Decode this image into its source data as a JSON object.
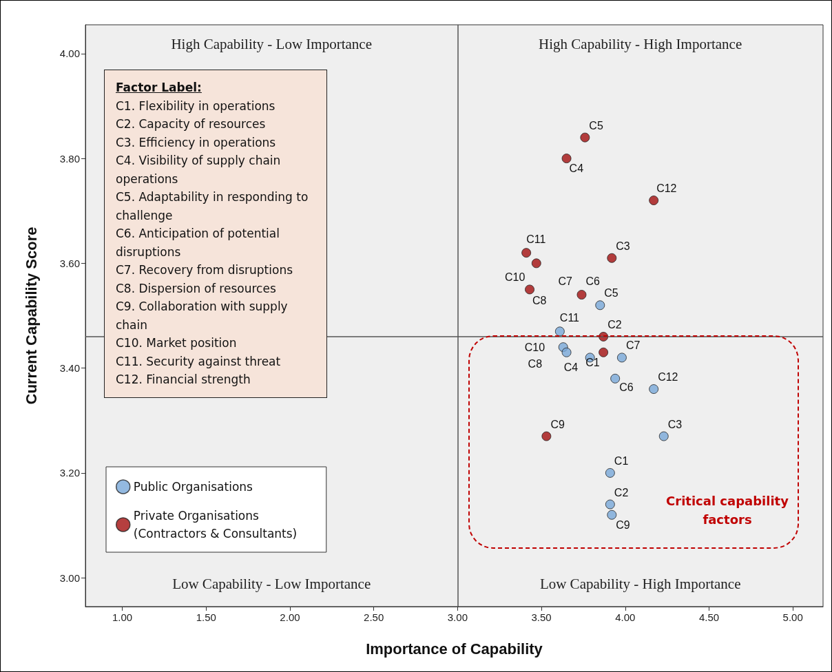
{
  "chart_data": {
    "type": "scatter",
    "xlabel": "Importance of Capability",
    "ylabel": "Current Capability Score",
    "xlim": [
      0.78,
      5.18
    ],
    "ylim": [
      2.945,
      4.055
    ],
    "xticks": [
      {
        "value": 1,
        "label": "1.00"
      },
      {
        "value": 1.5,
        "label": "1.50"
      },
      {
        "value": 2,
        "label": "2.00"
      },
      {
        "value": 2.5,
        "label": "2.50"
      },
      {
        "value": 3,
        "label": "3.00"
      },
      {
        "value": 3.5,
        "label": "3.50"
      },
      {
        "value": 4,
        "label": "4.00"
      },
      {
        "value": 4.5,
        "label": "4.50"
      },
      {
        "value": 5,
        "label": "5.00"
      }
    ],
    "yticks": [
      {
        "value": 3,
        "label": "3.00"
      },
      {
        "value": 3.2,
        "label": "3.20"
      },
      {
        "value": 3.4,
        "label": "3.40"
      },
      {
        "value": 3.6,
        "label": "3.60"
      },
      {
        "value": 3.8,
        "label": "3.80"
      },
      {
        "value": 4,
        "label": "4.00"
      }
    ],
    "grid": false,
    "legend": "bottom left",
    "marker": "circle",
    "series": [
      {
        "name": "Public Organisations",
        "color": "#78a8d8",
        "x": [
          3.85,
          3.61,
          3.63,
          3.65,
          3.79,
          3.98,
          3.94,
          4.17,
          4.23,
          3.91,
          3.91,
          3.92
        ],
        "values": [
          3.52,
          3.47,
          3.44,
          3.43,
          3.42,
          3.42,
          3.38,
          3.36,
          3.27,
          3.2,
          3.14,
          3.12
        ]
      },
      {
        "name": "Private Organisations (Contractors & Consultants)",
        "color": "#a30f0f",
        "x": [
          3.76,
          3.65,
          4.17,
          3.41,
          3.47,
          3.92,
          3.43,
          3.74,
          3.87,
          3.87,
          3.53
        ],
        "values": [
          3.84,
          3.8,
          3.72,
          3.62,
          3.6,
          3.61,
          3.55,
          3.54,
          3.46,
          3.43,
          3.27
        ]
      }
    ],
    "ref_lines": [
      {
        "axis": "x",
        "value": 3.0,
        "color": "#555555"
      },
      {
        "axis": "y",
        "value": 3.464,
        "color": "#555555"
      }
    ],
    "annotations": [
      "High Capability - Low Importance",
      "High Capability - High Importance",
      "Low Capability - Low Importance",
      "Low Capability - High Importance",
      "Factor Label:",
      "C1. Flexibility in operations",
      "C2. Capacity of resources",
      "C3. Efficiency in operations",
      "C4. Visibility of supply chain operations",
      "C5. Adaptability in responding to challenge",
      "C6. Anticipation of potential disruptions",
      "C7. Recovery from disruptions",
      "C8. Dispersion of resources",
      "C9. Collaboration with supply chain",
      "C10. Market position",
      "C11. Security against threat",
      "C12. Financial strength",
      "Critical capability factors",
      {
        "text": "C5",
        "x": 3.76,
        "y": 3.84
      },
      {
        "text": "C4",
        "x": 3.65,
        "y": 3.8
      },
      {
        "text": "C12",
        "x": 4.17,
        "y": 3.72
      },
      {
        "text": "C11",
        "x": 3.41,
        "y": 3.62
      },
      {
        "text": "C3",
        "x": 3.92,
        "y": 3.61
      },
      {
        "text": "C10",
        "x": 3.43,
        "y": 3.55
      },
      {
        "text": "C8",
        "x": 3.43,
        "y": 3.55
      },
      {
        "text": "C7",
        "x": 3.74,
        "y": 3.54
      },
      {
        "text": "C6",
        "x": 3.74,
        "y": 3.54
      },
      {
        "text": "C2",
        "x": 3.87,
        "y": 3.46
      },
      {
        "text": "C1",
        "x": 3.87,
        "y": 3.43
      },
      {
        "text": "C9",
        "x": 3.53,
        "y": 3.27
      },
      {
        "text": "C5",
        "x": 3.85,
        "y": 3.52
      },
      {
        "text": "C11",
        "x": 3.61,
        "y": 3.47
      },
      {
        "text": "C10",
        "x": 3.63,
        "y": 3.44
      },
      {
        "text": "C8",
        "x": 3.65,
        "y": 3.43
      },
      {
        "text": "C4",
        "x": 3.79,
        "y": 3.42
      },
      {
        "text": "C7",
        "x": 3.98,
        "y": 3.42
      },
      {
        "text": "C6",
        "x": 3.94,
        "y": 3.38
      },
      {
        "text": "C12",
        "x": 4.17,
        "y": 3.36
      },
      {
        "text": "C3",
        "x": 4.23,
        "y": 3.27
      },
      {
        "text": "C1",
        "x": 3.91,
        "y": 3.2
      },
      {
        "text": "C2",
        "x": 3.91,
        "y": 3.14
      },
      {
        "text": "C9",
        "x": 3.92,
        "y": 3.12
      }
    ]
  }
}
